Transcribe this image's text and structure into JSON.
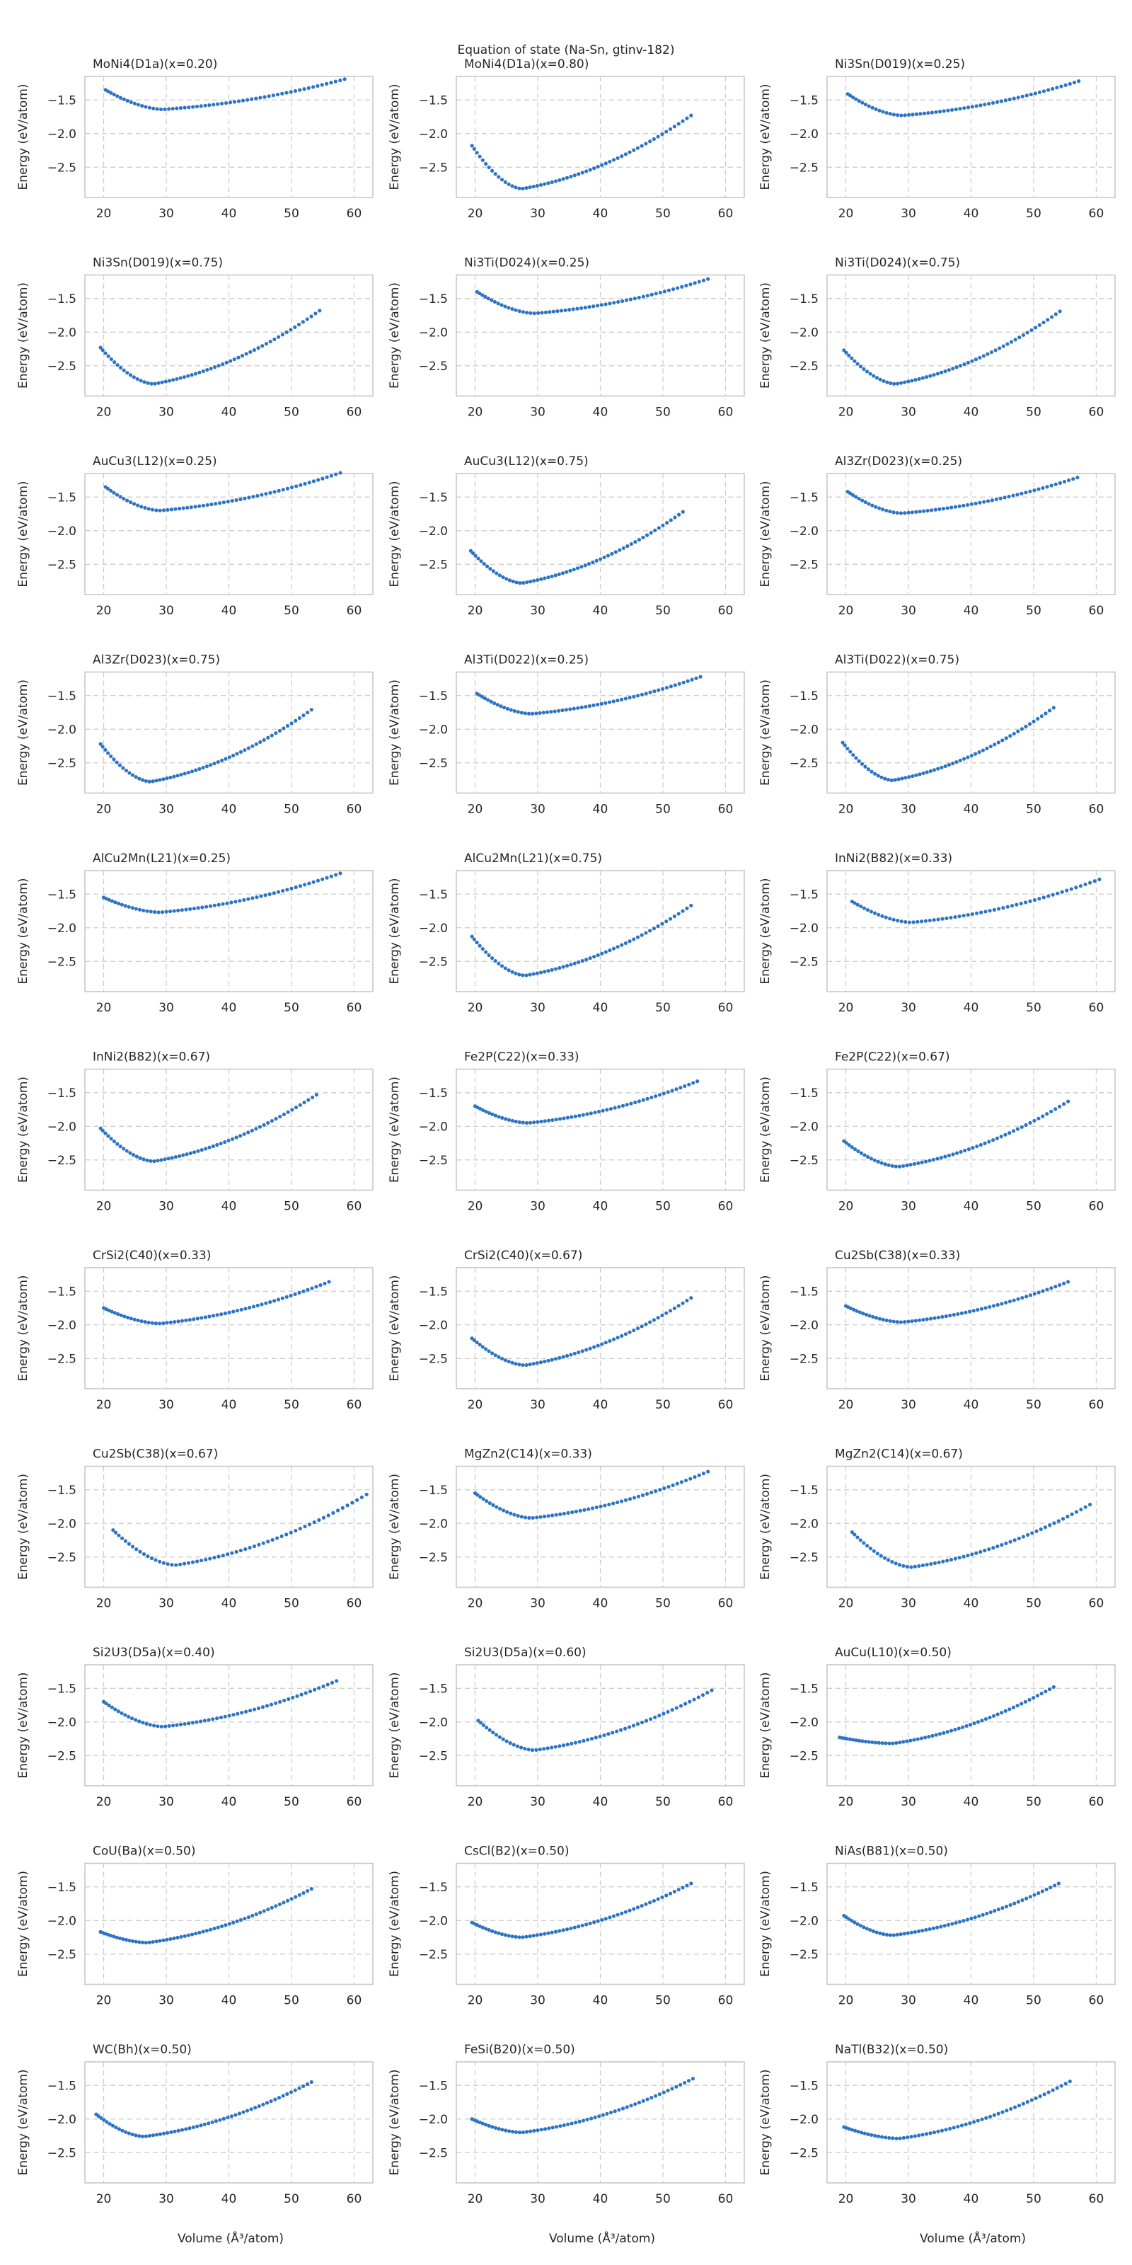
{
  "figure": {
    "suptitle": "Equation of state (Na-Sn, gtinv-182)",
    "xlabel": "Volume (Å³/atom)",
    "ylabel": "Energy (eV/atom)",
    "point_color": "#2d74c4",
    "grid": true
  },
  "chart_data": [
    {
      "type": "scatter",
      "title": "MoNi4(D1a)(x=0.20)",
      "xlim": [
        17,
        63
      ],
      "ylim": [
        -2.95,
        -1.15
      ],
      "xticks": [
        20,
        30,
        40,
        50,
        60
      ],
      "yticks": [
        -1.5,
        -2.0,
        -2.5
      ],
      "curve": {
        "x_min": 20.3,
        "x_eq": 29.5,
        "x_max": 58.5,
        "e_start": -1.35,
        "e_min": -1.64,
        "e_end": -1.19,
        "n": 60
      }
    },
    {
      "type": "scatter",
      "title": "MoNi4(D1a)(x=0.80)",
      "xlim": [
        17,
        63
      ],
      "ylim": [
        -2.95,
        -1.15
      ],
      "xticks": [
        20,
        30,
        40,
        50,
        60
      ],
      "yticks": [
        -1.5,
        -2.0,
        -2.5
      ],
      "curve": {
        "x_min": 19.5,
        "x_eq": 27.5,
        "x_max": 54.5,
        "e_start": -2.18,
        "e_min": -2.82,
        "e_end": -1.73,
        "n": 60
      }
    },
    {
      "type": "scatter",
      "title": "Ni3Sn(D019)(x=0.25)",
      "xlim": [
        17,
        63
      ],
      "ylim": [
        -2.95,
        -1.15
      ],
      "xticks": [
        20,
        30,
        40,
        50,
        60
      ],
      "yticks": [
        -1.5,
        -2.0,
        -2.5
      ],
      "curve": {
        "x_min": 20.3,
        "x_eq": 29.0,
        "x_max": 57.2,
        "e_start": -1.41,
        "e_min": -1.73,
        "e_end": -1.22,
        "n": 60
      }
    },
    {
      "type": "scatter",
      "title": "Ni3Sn(D019)(x=0.75)",
      "xlim": [
        17,
        63
      ],
      "ylim": [
        -2.95,
        -1.15
      ],
      "xticks": [
        20,
        30,
        40,
        50,
        60
      ],
      "yticks": [
        -1.5,
        -2.0,
        -2.5
      ],
      "curve": {
        "x_min": 19.5,
        "x_eq": 28.0,
        "x_max": 54.5,
        "e_start": -2.23,
        "e_min": -2.77,
        "e_end": -1.68,
        "n": 60
      }
    },
    {
      "type": "scatter",
      "title": "Ni3Ti(D024)(x=0.25)",
      "xlim": [
        17,
        63
      ],
      "ylim": [
        -2.95,
        -1.15
      ],
      "xticks": [
        20,
        30,
        40,
        50,
        60
      ],
      "yticks": [
        -1.5,
        -2.0,
        -2.5
      ],
      "curve": {
        "x_min": 20.3,
        "x_eq": 29.5,
        "x_max": 57.2,
        "e_start": -1.4,
        "e_min": -1.72,
        "e_end": -1.21,
        "n": 60
      }
    },
    {
      "type": "scatter",
      "title": "Ni3Ti(D024)(x=0.75)",
      "xlim": [
        17,
        63
      ],
      "ylim": [
        -2.95,
        -1.15
      ],
      "xticks": [
        20,
        30,
        40,
        50,
        60
      ],
      "yticks": [
        -1.5,
        -2.0,
        -2.5
      ],
      "curve": {
        "x_min": 19.7,
        "x_eq": 28.0,
        "x_max": 54.2,
        "e_start": -2.27,
        "e_min": -2.77,
        "e_end": -1.69,
        "n": 60
      }
    },
    {
      "type": "scatter",
      "title": "AuCu3(L12)(x=0.25)",
      "xlim": [
        17,
        63
      ],
      "ylim": [
        -2.95,
        -1.15
      ],
      "xticks": [
        20,
        30,
        40,
        50,
        60
      ],
      "yticks": [
        -1.5,
        -2.0,
        -2.5
      ],
      "curve": {
        "x_min": 20.3,
        "x_eq": 29.0,
        "x_max": 57.8,
        "e_start": -1.35,
        "e_min": -1.7,
        "e_end": -1.14,
        "n": 60
      }
    },
    {
      "type": "scatter",
      "title": "AuCu3(L12)(x=0.75)",
      "xlim": [
        17,
        63
      ],
      "ylim": [
        -2.95,
        -1.15
      ],
      "xticks": [
        20,
        30,
        40,
        50,
        60
      ],
      "yticks": [
        -1.5,
        -2.0,
        -2.5
      ],
      "curve": {
        "x_min": 19.3,
        "x_eq": 27.5,
        "x_max": 53.2,
        "e_start": -2.3,
        "e_min": -2.78,
        "e_end": -1.72,
        "n": 60
      }
    },
    {
      "type": "scatter",
      "title": "Al3Zr(D023)(x=0.25)",
      "xlim": [
        17,
        63
      ],
      "ylim": [
        -2.95,
        -1.15
      ],
      "xticks": [
        20,
        30,
        40,
        50,
        60
      ],
      "yticks": [
        -1.5,
        -2.0,
        -2.5
      ],
      "curve": {
        "x_min": 20.3,
        "x_eq": 29.0,
        "x_max": 57.0,
        "e_start": -1.42,
        "e_min": -1.74,
        "e_end": -1.21,
        "n": 60
      }
    },
    {
      "type": "scatter",
      "title": "Al3Zr(D023)(x=0.75)",
      "xlim": [
        17,
        63
      ],
      "ylim": [
        -2.95,
        -1.15
      ],
      "xticks": [
        20,
        30,
        40,
        50,
        60
      ],
      "yticks": [
        -1.5,
        -2.0,
        -2.5
      ],
      "curve": {
        "x_min": 19.5,
        "x_eq": 27.5,
        "x_max": 53.2,
        "e_start": -2.22,
        "e_min": -2.78,
        "e_end": -1.71,
        "n": 60
      }
    },
    {
      "type": "scatter",
      "title": "Al3Ti(D022)(x=0.25)",
      "xlim": [
        17,
        63
      ],
      "ylim": [
        -2.95,
        -1.15
      ],
      "xticks": [
        20,
        30,
        40,
        50,
        60
      ],
      "yticks": [
        -1.5,
        -2.0,
        -2.5
      ],
      "curve": {
        "x_min": 20.3,
        "x_eq": 29.0,
        "x_max": 56.0,
        "e_start": -1.47,
        "e_min": -1.77,
        "e_end": -1.22,
        "n": 60
      }
    },
    {
      "type": "scatter",
      "title": "Al3Ti(D022)(x=0.75)",
      "xlim": [
        17,
        63
      ],
      "ylim": [
        -2.95,
        -1.15
      ],
      "xticks": [
        20,
        30,
        40,
        50,
        60
      ],
      "yticks": [
        -1.5,
        -2.0,
        -2.5
      ],
      "curve": {
        "x_min": 19.5,
        "x_eq": 27.5,
        "x_max": 53.2,
        "e_start": -2.2,
        "e_min": -2.76,
        "e_end": -1.68,
        "n": 60
      }
    },
    {
      "type": "scatter",
      "title": "AlCu2Mn(L21)(x=0.25)",
      "xlim": [
        17,
        63
      ],
      "ylim": [
        -2.95,
        -1.15
      ],
      "xticks": [
        20,
        30,
        40,
        50,
        60
      ],
      "yticks": [
        -1.5,
        -2.0,
        -2.5
      ],
      "curve": {
        "x_min": 20.0,
        "x_eq": 29.0,
        "x_max": 57.8,
        "e_start": -1.55,
        "e_min": -1.77,
        "e_end": -1.19,
        "n": 60
      }
    },
    {
      "type": "scatter",
      "title": "AlCu2Mn(L21)(x=0.75)",
      "xlim": [
        17,
        63
      ],
      "ylim": [
        -2.95,
        -1.15
      ],
      "xticks": [
        20,
        30,
        40,
        50,
        60
      ],
      "yticks": [
        -1.5,
        -2.0,
        -2.5
      ],
      "curve": {
        "x_min": 19.5,
        "x_eq": 28.0,
        "x_max": 54.5,
        "e_start": -2.13,
        "e_min": -2.71,
        "e_end": -1.67,
        "n": 60
      }
    },
    {
      "type": "scatter",
      "title": "InNi2(B82)(x=0.33)",
      "xlim": [
        17,
        63
      ],
      "ylim": [
        -2.95,
        -1.15
      ],
      "xticks": [
        20,
        30,
        40,
        50,
        60
      ],
      "yticks": [
        -1.5,
        -2.0,
        -2.5
      ],
      "curve": {
        "x_min": 21.0,
        "x_eq": 30.5,
        "x_max": 60.5,
        "e_start": -1.61,
        "e_min": -1.92,
        "e_end": -1.28,
        "n": 60
      }
    },
    {
      "type": "scatter",
      "title": "InNi2(B82)(x=0.67)",
      "xlim": [
        17,
        63
      ],
      "ylim": [
        -2.95,
        -1.15
      ],
      "xticks": [
        20,
        30,
        40,
        50,
        60
      ],
      "yticks": [
        -1.5,
        -2.0,
        -2.5
      ],
      "curve": {
        "x_min": 19.5,
        "x_eq": 28.0,
        "x_max": 54.0,
        "e_start": -2.03,
        "e_min": -2.52,
        "e_end": -1.53,
        "n": 60
      }
    },
    {
      "type": "scatter",
      "title": "Fe2P(C22)(x=0.33)",
      "xlim": [
        17,
        63
      ],
      "ylim": [
        -2.95,
        -1.15
      ],
      "xticks": [
        20,
        30,
        40,
        50,
        60
      ],
      "yticks": [
        -1.5,
        -2.0,
        -2.5
      ],
      "curve": {
        "x_min": 20.0,
        "x_eq": 28.5,
        "x_max": 55.5,
        "e_start": -1.7,
        "e_min": -1.95,
        "e_end": -1.33,
        "n": 60
      }
    },
    {
      "type": "scatter",
      "title": "Fe2P(C22)(x=0.67)",
      "xlim": [
        17,
        63
      ],
      "ylim": [
        -2.95,
        -1.15
      ],
      "xticks": [
        20,
        30,
        40,
        50,
        60
      ],
      "yticks": [
        -1.5,
        -2.0,
        -2.5
      ],
      "curve": {
        "x_min": 19.7,
        "x_eq": 28.5,
        "x_max": 55.5,
        "e_start": -2.22,
        "e_min": -2.6,
        "e_end": -1.63,
        "n": 60
      }
    },
    {
      "type": "scatter",
      "title": "CrSi2(C40)(x=0.33)",
      "xlim": [
        17,
        63
      ],
      "ylim": [
        -2.95,
        -1.15
      ],
      "xticks": [
        20,
        30,
        40,
        50,
        60
      ],
      "yticks": [
        -1.5,
        -2.0,
        -2.5
      ],
      "curve": {
        "x_min": 20.0,
        "x_eq": 29.0,
        "x_max": 56.0,
        "e_start": -1.75,
        "e_min": -1.98,
        "e_end": -1.36,
        "n": 60
      }
    },
    {
      "type": "scatter",
      "title": "CrSi2(C40)(x=0.67)",
      "xlim": [
        17,
        63
      ],
      "ylim": [
        -2.95,
        -1.15
      ],
      "xticks": [
        20,
        30,
        40,
        50,
        60
      ],
      "yticks": [
        -1.5,
        -2.0,
        -2.5
      ],
      "curve": {
        "x_min": 19.5,
        "x_eq": 28.0,
        "x_max": 54.5,
        "e_start": -2.2,
        "e_min": -2.6,
        "e_end": -1.6,
        "n": 60
      }
    },
    {
      "type": "scatter",
      "title": "Cu2Sb(C38)(x=0.33)",
      "xlim": [
        17,
        63
      ],
      "ylim": [
        -2.95,
        -1.15
      ],
      "xticks": [
        20,
        30,
        40,
        50,
        60
      ],
      "yticks": [
        -1.5,
        -2.0,
        -2.5
      ],
      "curve": {
        "x_min": 20.0,
        "x_eq": 29.0,
        "x_max": 55.5,
        "e_start": -1.72,
        "e_min": -1.96,
        "e_end": -1.36,
        "n": 60
      }
    },
    {
      "type": "scatter",
      "title": "Cu2Sb(C38)(x=0.67)",
      "xlim": [
        17,
        63
      ],
      "ylim": [
        -2.95,
        -1.15
      ],
      "xticks": [
        20,
        30,
        40,
        50,
        60
      ],
      "yticks": [
        -1.5,
        -2.0,
        -2.5
      ],
      "curve": {
        "x_min": 21.5,
        "x_eq": 31.5,
        "x_max": 62.0,
        "e_start": -2.1,
        "e_min": -2.62,
        "e_end": -1.57,
        "n": 60
      }
    },
    {
      "type": "scatter",
      "title": "MgZn2(C14)(x=0.33)",
      "xlim": [
        17,
        63
      ],
      "ylim": [
        -2.95,
        -1.15
      ],
      "xticks": [
        20,
        30,
        40,
        50,
        60
      ],
      "yticks": [
        -1.5,
        -2.0,
        -2.5
      ],
      "curve": {
        "x_min": 20.0,
        "x_eq": 29.0,
        "x_max": 57.2,
        "e_start": -1.55,
        "e_min": -1.92,
        "e_end": -1.23,
        "n": 60
      }
    },
    {
      "type": "scatter",
      "title": "MgZn2(C14)(x=0.67)",
      "xlim": [
        17,
        63
      ],
      "ylim": [
        -2.95,
        -1.15
      ],
      "xticks": [
        20,
        30,
        40,
        50,
        60
      ],
      "yticks": [
        -1.5,
        -2.0,
        -2.5
      ],
      "curve": {
        "x_min": 21.0,
        "x_eq": 30.5,
        "x_max": 59.0,
        "e_start": -2.13,
        "e_min": -2.65,
        "e_end": -1.72,
        "n": 60
      }
    },
    {
      "type": "scatter",
      "title": "Si2U3(D5a)(x=0.40)",
      "xlim": [
        17,
        63
      ],
      "ylim": [
        -2.95,
        -1.15
      ],
      "xticks": [
        20,
        30,
        40,
        50,
        60
      ],
      "yticks": [
        -1.5,
        -2.0,
        -2.5
      ],
      "curve": {
        "x_min": 20.0,
        "x_eq": 29.5,
        "x_max": 57.2,
        "e_start": -1.7,
        "e_min": -2.07,
        "e_end": -1.39,
        "n": 60
      }
    },
    {
      "type": "scatter",
      "title": "Si2U3(D5a)(x=0.60)",
      "xlim": [
        17,
        63
      ],
      "ylim": [
        -2.95,
        -1.15
      ],
      "xticks": [
        20,
        30,
        40,
        50,
        60
      ],
      "yticks": [
        -1.5,
        -2.0,
        -2.5
      ],
      "curve": {
        "x_min": 20.5,
        "x_eq": 29.5,
        "x_max": 57.8,
        "e_start": -1.98,
        "e_min": -2.42,
        "e_end": -1.53,
        "n": 60
      }
    },
    {
      "type": "scatter",
      "title": "AuCu(L10)(x=0.50)",
      "xlim": [
        17,
        63
      ],
      "ylim": [
        -2.95,
        -1.15
      ],
      "xticks": [
        20,
        30,
        40,
        50,
        60
      ],
      "yticks": [
        -1.5,
        -2.0,
        -2.5
      ],
      "curve": {
        "x_min": 19.0,
        "x_eq": 27.5,
        "x_max": 53.2,
        "e_start": -2.23,
        "e_min": -2.32,
        "e_end": -1.48,
        "n": 60
      }
    },
    {
      "type": "scatter",
      "title": "CoU(Ba)(x=0.50)",
      "xlim": [
        17,
        63
      ],
      "ylim": [
        -2.95,
        -1.15
      ],
      "xticks": [
        20,
        30,
        40,
        50,
        60
      ],
      "yticks": [
        -1.5,
        -2.0,
        -2.5
      ],
      "curve": {
        "x_min": 19.5,
        "x_eq": 27.0,
        "x_max": 53.2,
        "e_start": -2.17,
        "e_min": -2.33,
        "e_end": -1.53,
        "n": 60
      }
    },
    {
      "type": "scatter",
      "title": "CsCl(B2)(x=0.50)",
      "xlim": [
        17,
        63
      ],
      "ylim": [
        -2.95,
        -1.15
      ],
      "xticks": [
        20,
        30,
        40,
        50,
        60
      ],
      "yticks": [
        -1.5,
        -2.0,
        -2.5
      ],
      "curve": {
        "x_min": 19.5,
        "x_eq": 27.5,
        "x_max": 54.5,
        "e_start": -2.03,
        "e_min": -2.25,
        "e_end": -1.45,
        "n": 60
      }
    },
    {
      "type": "scatter",
      "title": "NiAs(B81)(x=0.50)",
      "xlim": [
        17,
        63
      ],
      "ylim": [
        -2.95,
        -1.15
      ],
      "xticks": [
        20,
        30,
        40,
        50,
        60
      ],
      "yticks": [
        -1.5,
        -2.0,
        -2.5
      ],
      "curve": {
        "x_min": 19.7,
        "x_eq": 27.5,
        "x_max": 54.0,
        "e_start": -1.93,
        "e_min": -2.22,
        "e_end": -1.45,
        "n": 60
      }
    },
    {
      "type": "scatter",
      "title": "WC(Bh)(x=0.50)",
      "xlim": [
        17,
        63
      ],
      "ylim": [
        -2.95,
        -1.15
      ],
      "xticks": [
        20,
        30,
        40,
        50,
        60
      ],
      "yticks": [
        -1.5,
        -2.0,
        -2.5
      ],
      "curve": {
        "x_min": 18.8,
        "x_eq": 26.5,
        "x_max": 53.2,
        "e_start": -1.93,
        "e_min": -2.26,
        "e_end": -1.45,
        "n": 60
      }
    },
    {
      "type": "scatter",
      "title": "FeSi(B20)(x=0.50)",
      "xlim": [
        17,
        63
      ],
      "ylim": [
        -2.95,
        -1.15
      ],
      "xticks": [
        20,
        30,
        40,
        50,
        60
      ],
      "yticks": [
        -1.5,
        -2.0,
        -2.5
      ],
      "curve": {
        "x_min": 19.5,
        "x_eq": 27.5,
        "x_max": 54.8,
        "e_start": -2.0,
        "e_min": -2.2,
        "e_end": -1.4,
        "n": 60
      }
    },
    {
      "type": "scatter",
      "title": "NaTl(B32)(x=0.50)",
      "xlim": [
        17,
        63
      ],
      "ylim": [
        -2.95,
        -1.15
      ],
      "xticks": [
        20,
        30,
        40,
        50,
        60
      ],
      "yticks": [
        -1.5,
        -2.0,
        -2.5
      ],
      "curve": {
        "x_min": 19.7,
        "x_eq": 28.5,
        "x_max": 55.8,
        "e_start": -2.12,
        "e_min": -2.29,
        "e_end": -1.44,
        "n": 60
      }
    }
  ]
}
